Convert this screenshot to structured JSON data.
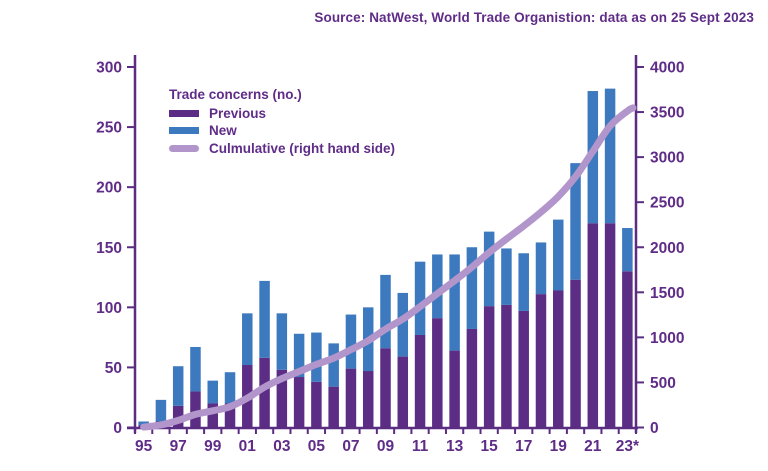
{
  "source_note": "Source: NatWest, World Trade Organistion: data as on 25 Sept 2023",
  "colors": {
    "previous": "#5c2d84",
    "new": "#3d79be",
    "cumulative": "#b295cb",
    "axis": "#5b2d82",
    "text": "#5f2c87",
    "background": "#ffffff"
  },
  "legend": {
    "title": "Trade concerns (no.)",
    "items": [
      {
        "label": "Previous",
        "color_key": "previous",
        "swatch": "bar"
      },
      {
        "label": "New",
        "color_key": "new",
        "swatch": "bar"
      },
      {
        "label": "Culmulative (right hand side)",
        "color_key": "cumulative",
        "swatch": "line"
      }
    ]
  },
  "chart_data": {
    "type": "bar",
    "subtype": "stacked-bars-with-cumulative-line",
    "title": "",
    "xlabel": "",
    "ylabel_left": "",
    "ylabel_right": "",
    "grid": false,
    "legend_position": "top-left-inside",
    "categories": [
      "95",
      "96",
      "97",
      "98",
      "99",
      "00",
      "01",
      "02",
      "03",
      "04",
      "05",
      "06",
      "07",
      "08",
      "09",
      "10",
      "11",
      "12",
      "13",
      "14",
      "15",
      "16",
      "17",
      "18",
      "19",
      "20",
      "21",
      "22",
      "23*"
    ],
    "x_tick_labels_shown": [
      "95",
      "97",
      "99",
      "01",
      "03",
      "05",
      "07",
      "09",
      "11",
      "13",
      "15",
      "17",
      "19",
      "21",
      "23*"
    ],
    "series": [
      {
        "name": "Previous",
        "type": "bar",
        "axis": "left",
        "values": [
          2,
          5,
          18,
          30,
          20,
          20,
          52,
          58,
          48,
          42,
          38,
          34,
          49,
          47,
          66,
          59,
          77,
          91,
          64,
          82,
          101,
          102,
          97,
          111,
          114,
          123,
          170,
          170,
          130
        ]
      },
      {
        "name": "New",
        "type": "bar",
        "axis": "left",
        "values": [
          3,
          18,
          33,
          37,
          19,
          26,
          43,
          64,
          47,
          36,
          41,
          36,
          45,
          53,
          61,
          53,
          61,
          53,
          80,
          68,
          62,
          47,
          48,
          43,
          59,
          97,
          110,
          112,
          36
        ]
      },
      {
        "name": "Culmulative (right hand side)",
        "type": "line",
        "axis": "right",
        "values": [
          5,
          28,
          79,
          146,
          185,
          231,
          326,
          448,
          543,
          621,
          700,
          770,
          864,
          964,
          1091,
          1203,
          1341,
          1485,
          1629,
          1779,
          1942,
          2091,
          2236,
          2390,
          2563,
          2783,
          3063,
          3345,
          3511
        ]
      }
    ],
    "left_axis": {
      "min": 0,
      "max": 300,
      "ticks": [
        0,
        50,
        100,
        150,
        200,
        250,
        300
      ]
    },
    "right_axis": {
      "min": 0,
      "max": 4000,
      "ticks": [
        0,
        500,
        1000,
        1500,
        2000,
        2500,
        3000,
        3500,
        4000
      ]
    }
  }
}
